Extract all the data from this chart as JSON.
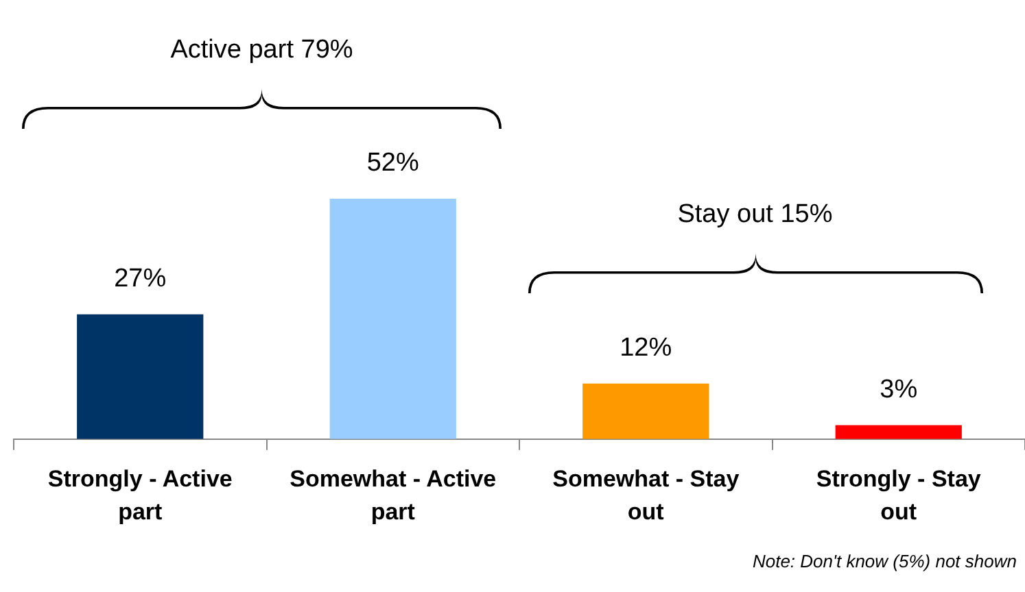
{
  "chart_data": {
    "type": "bar",
    "categories": [
      "Strongly - Active part",
      "Somewhat - Active part",
      "Somewhat - Stay out",
      "Strongly - Stay out"
    ],
    "values": [
      27,
      52,
      12,
      3
    ],
    "colors": [
      "#003366",
      "#99ccff",
      "#ff9900",
      "#ff0000"
    ],
    "value_labels": [
      "27%",
      "52%",
      "12%",
      "3%"
    ],
    "grid": false,
    "legend": false,
    "tick_labels": "x",
    "annotations": [
      "Active part 79%",
      "Stay out 15%",
      "Note: Don't know (5%) not shown"
    ]
  }
}
